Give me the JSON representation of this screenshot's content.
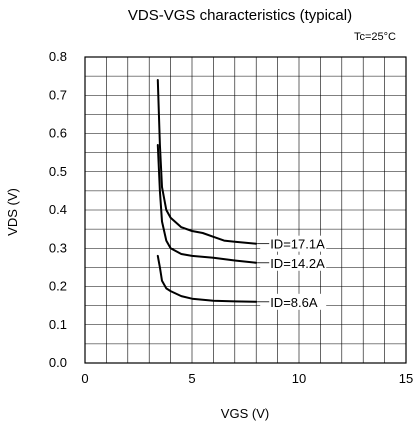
{
  "chart_data": {
    "type": "line",
    "title": "VDS-VGS characteristics (typical)",
    "condition": "Tc=25°C",
    "xlabel": "VGS (V)",
    "ylabel": "VDS (V)",
    "xlim": [
      0,
      15
    ],
    "ylim": [
      0,
      0.8
    ],
    "x_ticks": [
      "0",
      "5",
      "10",
      "15"
    ],
    "y_ticks": [
      "0.0",
      "0.1",
      "0.2",
      "0.3",
      "0.4",
      "0.5",
      "0.6",
      "0.7",
      "0.8"
    ],
    "grid": true,
    "series": [
      {
        "name": "ID=17.1A",
        "points": [
          [
            3.4,
            0.74
          ],
          [
            3.5,
            0.57
          ],
          [
            3.6,
            0.46
          ],
          [
            3.8,
            0.4
          ],
          [
            4.0,
            0.38
          ],
          [
            4.5,
            0.355
          ],
          [
            5.0,
            0.345
          ],
          [
            5.5,
            0.34
          ],
          [
            6.0,
            0.33
          ],
          [
            6.5,
            0.32
          ],
          [
            7.0,
            0.317
          ],
          [
            8.0,
            0.312
          ]
        ]
      },
      {
        "name": "ID=14.2A",
        "points": [
          [
            3.4,
            0.57
          ],
          [
            3.5,
            0.45
          ],
          [
            3.6,
            0.37
          ],
          [
            3.8,
            0.32
          ],
          [
            4.0,
            0.3
          ],
          [
            4.5,
            0.285
          ],
          [
            5.0,
            0.28
          ],
          [
            6.0,
            0.275
          ],
          [
            7.0,
            0.268
          ],
          [
            8.0,
            0.262
          ]
        ]
      },
      {
        "name": "ID=8.6A",
        "points": [
          [
            3.4,
            0.28
          ],
          [
            3.5,
            0.25
          ],
          [
            3.6,
            0.215
          ],
          [
            3.8,
            0.195
          ],
          [
            4.0,
            0.188
          ],
          [
            4.5,
            0.175
          ],
          [
            5.0,
            0.168
          ],
          [
            6.0,
            0.163
          ],
          [
            7.0,
            0.161
          ],
          [
            8.0,
            0.16
          ]
        ]
      }
    ]
  }
}
